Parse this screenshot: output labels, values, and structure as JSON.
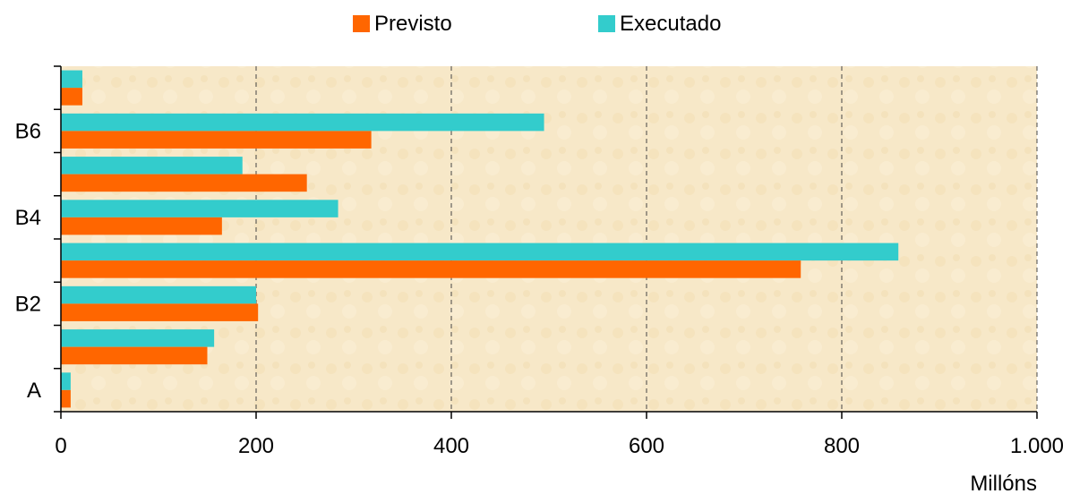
{
  "chart_data": {
    "type": "bar",
    "orientation": "horizontal",
    "categories": [
      "A",
      "",
      "B2",
      "",
      "B4",
      "",
      "B6",
      ""
    ],
    "category_ticklabels": [
      "A",
      "",
      "B2",
      "",
      "B4",
      "",
      "B6",
      ""
    ],
    "series": [
      {
        "name": "Previsto",
        "color": "#ff6600",
        "values": [
          10,
          150,
          202,
          758,
          165,
          252,
          318,
          22
        ]
      },
      {
        "name": "Executado",
        "color": "#33cccc",
        "values": [
          10,
          157,
          200,
          858,
          284,
          186,
          495,
          22
        ]
      }
    ],
    "title": "",
    "xlabel": "Millóns",
    "ylabel": "",
    "xlim": [
      0,
      1000
    ],
    "xticks": [
      0,
      200,
      400,
      600,
      800,
      1000
    ],
    "xtick_labels": [
      "0",
      "200",
      "400",
      "600",
      "800",
      "1.000"
    ],
    "grid": "vertical dashed",
    "legend_position": "top-center",
    "plot_background": "#f7e8c8"
  },
  "legend": {
    "items": [
      {
        "label": "Previsto",
        "color": "#ff6600"
      },
      {
        "label": "Executado",
        "color": "#33cccc"
      }
    ]
  }
}
